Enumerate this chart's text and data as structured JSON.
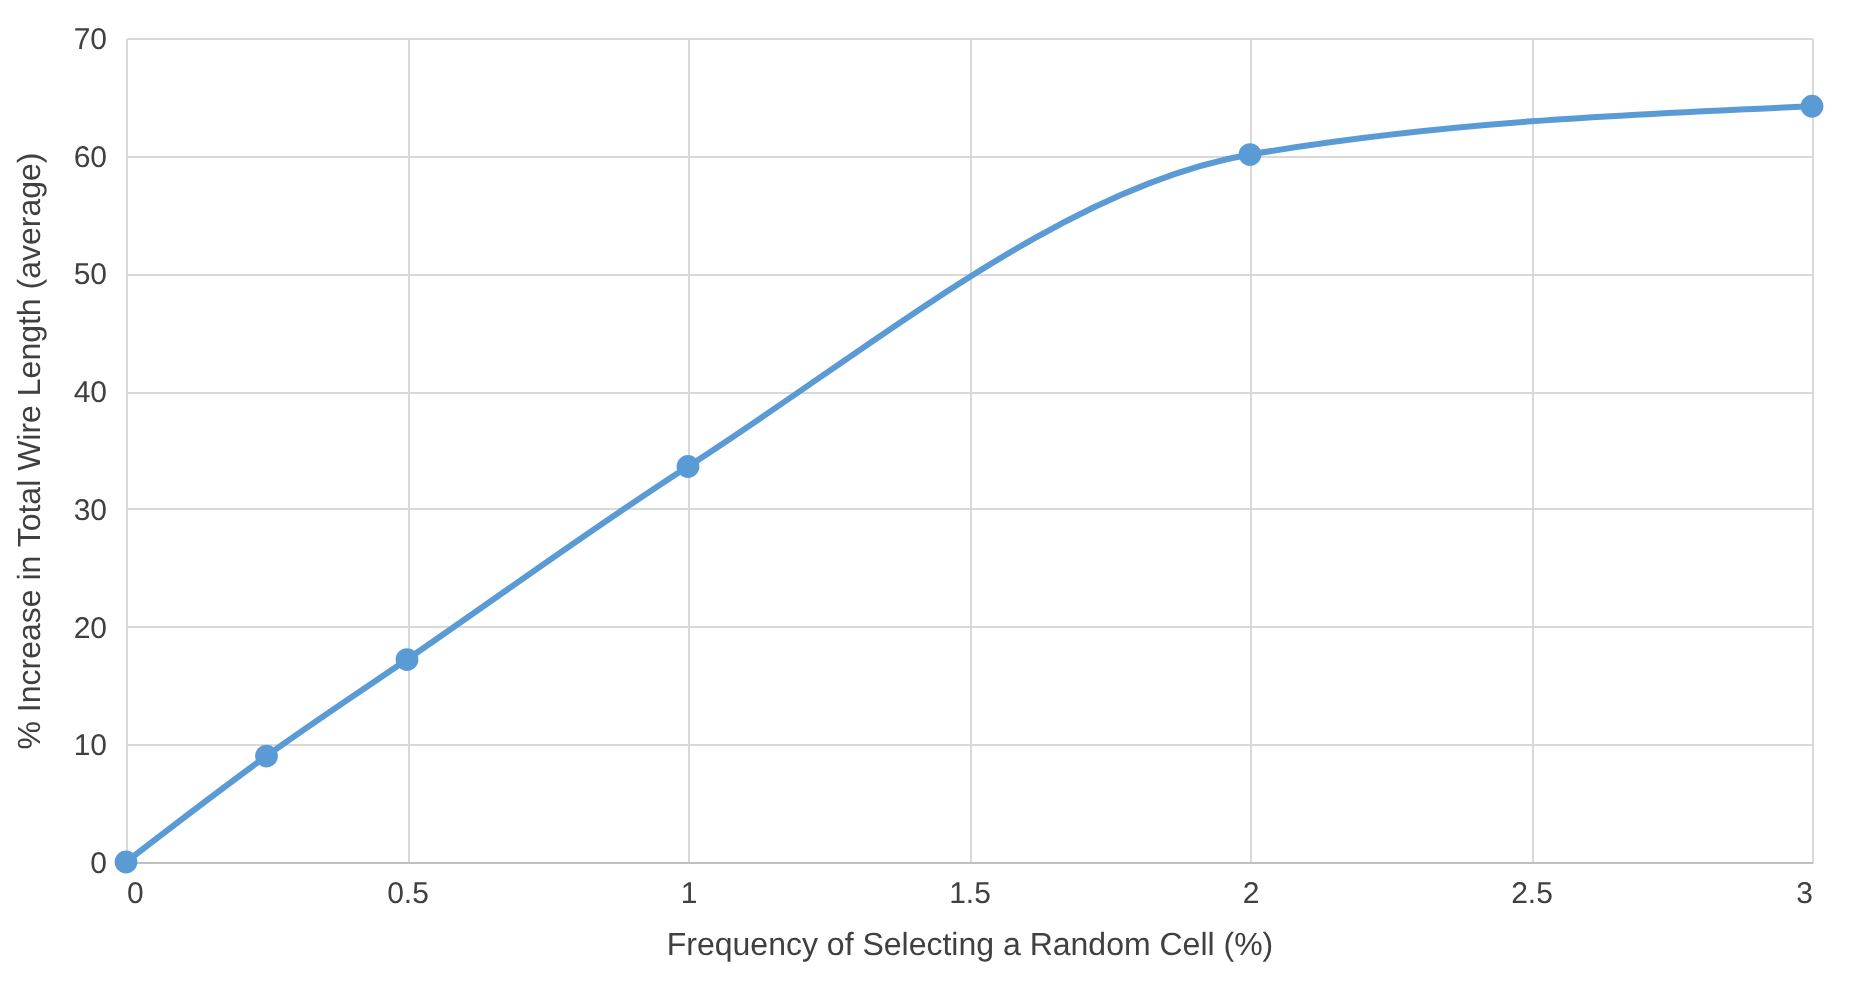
{
  "chart_data": {
    "type": "line",
    "xlabel": "Frequency of Selecting a Random Cell (%)",
    "ylabel": "% Increase in Total Wire Length (average)",
    "x": [
      0,
      0.25,
      0.5,
      1,
      2,
      3
    ],
    "series": [
      {
        "color": "#5b9bd5",
        "values": [
          0,
          9,
          17.2,
          33.6,
          60.1,
          64.2
        ]
      }
    ],
    "xlim": [
      0,
      3
    ],
    "xticks": [
      0,
      0.5,
      1,
      1.5,
      2,
      2.5,
      3
    ],
    "ylim": [
      0,
      70
    ],
    "yticks": [
      0,
      10,
      20,
      30,
      40,
      50,
      60,
      70
    ],
    "grid": true,
    "marker": "circle",
    "line_style": "solid"
  }
}
